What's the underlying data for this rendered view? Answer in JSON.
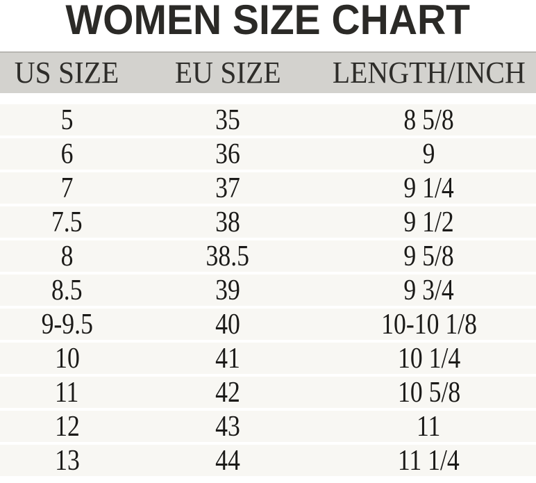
{
  "chart_data": {
    "type": "table",
    "title": "WOMEN SIZE CHART",
    "columns": [
      "US SIZE",
      "EU SIZE",
      "LENGTH/INCH"
    ],
    "rows": [
      [
        "5",
        "35",
        "8 5/8"
      ],
      [
        "6",
        "36",
        "9"
      ],
      [
        "7",
        "37",
        "9 1/4"
      ],
      [
        "7.5",
        "38",
        "9 1/2"
      ],
      [
        "8",
        "38.5",
        "9 5/8"
      ],
      [
        "8.5",
        "39",
        "9 3/4"
      ],
      [
        "9-9.5",
        "40",
        "10-10 1/8"
      ],
      [
        "10",
        "41",
        "10 1/4"
      ],
      [
        "11",
        "42",
        "10 5/8"
      ],
      [
        "12",
        "43",
        "11"
      ],
      [
        "13",
        "44",
        "11 1/4"
      ]
    ],
    "colors": {
      "background": "#ffffff",
      "header_bg": "#d3d2ce",
      "header_border": "#b7b6b2",
      "row_bg": "#f8f7f3",
      "title_text": "#2b2a27",
      "header_text": "#2e2d2a",
      "cell_text": "#1b1a18"
    }
  }
}
